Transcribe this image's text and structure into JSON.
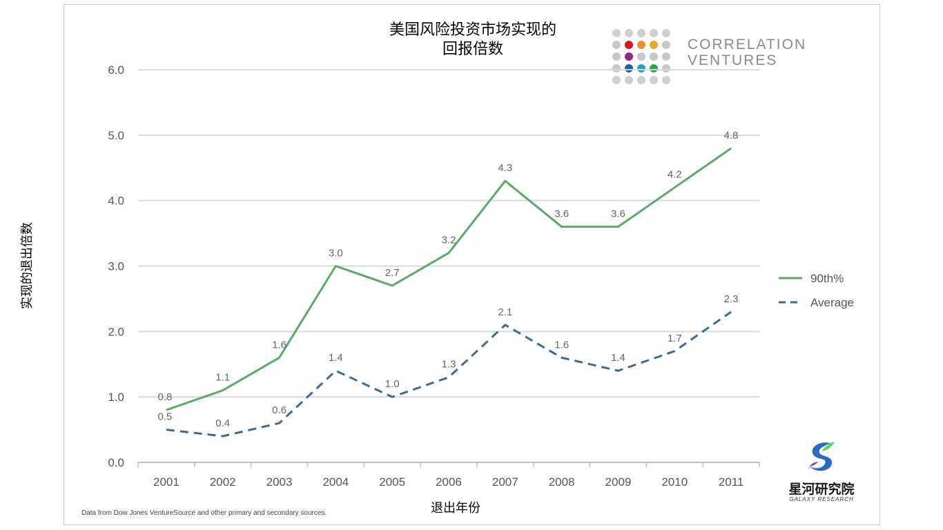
{
  "chart_data": {
    "type": "line",
    "title": "美国风险投资市场实现的\n回报倍数",
    "title_line1": "美国风险投资市场实现的",
    "title_line2": "回报倍数",
    "xlabel": "退出年份",
    "ylabel": "实现的退出倍数",
    "categories": [
      "2001",
      "2002",
      "2003",
      "2004",
      "2005",
      "2006",
      "2007",
      "2008",
      "2009",
      "2010",
      "2011"
    ],
    "ylim": [
      0,
      6
    ],
    "yticks": [
      "0.0",
      "1.0",
      "2.0",
      "3.0",
      "4.0",
      "5.0",
      "6.0"
    ],
    "grid": true,
    "legend_position": "right",
    "series": [
      {
        "name": "90th%",
        "color": "#5aa86a",
        "style": "solid",
        "values": [
          0.8,
          1.1,
          1.6,
          3.0,
          2.7,
          3.2,
          4.3,
          3.6,
          3.6,
          4.2,
          4.8
        ],
        "labels": [
          "0.8",
          "1.1",
          "1.6",
          "3.0",
          "2.7",
          "3.2",
          "4.3",
          "3.6",
          "3.6",
          "4.2",
          "4.8"
        ]
      },
      {
        "name": "Average",
        "color": "#3d6b8f",
        "style": "dashed",
        "values": [
          0.5,
          0.4,
          0.6,
          1.4,
          1.0,
          1.3,
          2.1,
          1.6,
          1.4,
          1.7,
          2.3
        ],
        "labels": [
          "0.5",
          "0.4",
          "0.6",
          "1.4",
          "1.0",
          "1.3",
          "2.1",
          "1.6",
          "1.4",
          "1.7",
          "2.3"
        ]
      }
    ],
    "source": "Data from Dow Jones VentureSource and other primary and secondary sources."
  },
  "logo": {
    "line1": "CORRELATION",
    "line2": "VENTURES",
    "dot_colors": [
      "#c8c8c8",
      "#d6161c",
      "#e8902a",
      "#e8a82e",
      "#c8c8c8",
      "#c8c8c8",
      "#8b2a8c",
      "#c8c8c8",
      "#c8c8c8",
      "#c8c8c8",
      "#c8c8c8",
      "#1f5fa8",
      "#2aa0b8",
      "#2ea84a",
      "#c8c8c8"
    ]
  },
  "watermark": {
    "cn": "星河研究院",
    "en": "GALAXY RESEARCH"
  }
}
